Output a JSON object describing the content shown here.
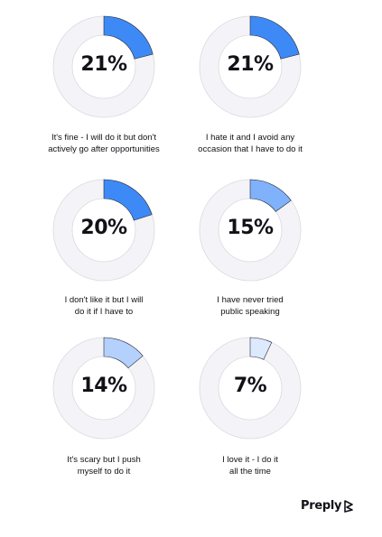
{
  "chart_data": {
    "type": "pie",
    "style": "donut",
    "track_color": "#f4f4f8",
    "track_stroke": "#d8d8e0",
    "items": [
      {
        "value": 21,
        "display": "21%",
        "label_lines": [
          "It's fine - I will do it but don't",
          "actively go after opportunities"
        ],
        "color": "#3d8af7"
      },
      {
        "value": 21,
        "display": "21%",
        "label_lines": [
          "I hate it and I avoid any",
          "occasion that I have to do it"
        ],
        "color": "#3d8af7"
      },
      {
        "value": 20,
        "display": "20%",
        "label_lines": [
          "I don't like it but I will",
          "do it if I have to"
        ],
        "color": "#3d8af7"
      },
      {
        "value": 15,
        "display": "15%",
        "label_lines": [
          "I have never tried",
          "public speaking"
        ],
        "color": "#7fb2fa"
      },
      {
        "value": 14,
        "display": "14%",
        "label_lines": [
          "It's scary but I push",
          "myself to do it"
        ],
        "color": "#b3d1fc"
      },
      {
        "value": 7,
        "display": "7%",
        "label_lines": [
          "I love it - I do it",
          "all the time"
        ],
        "color": "#dde9fd"
      }
    ]
  },
  "brand": {
    "name": "Preply"
  }
}
